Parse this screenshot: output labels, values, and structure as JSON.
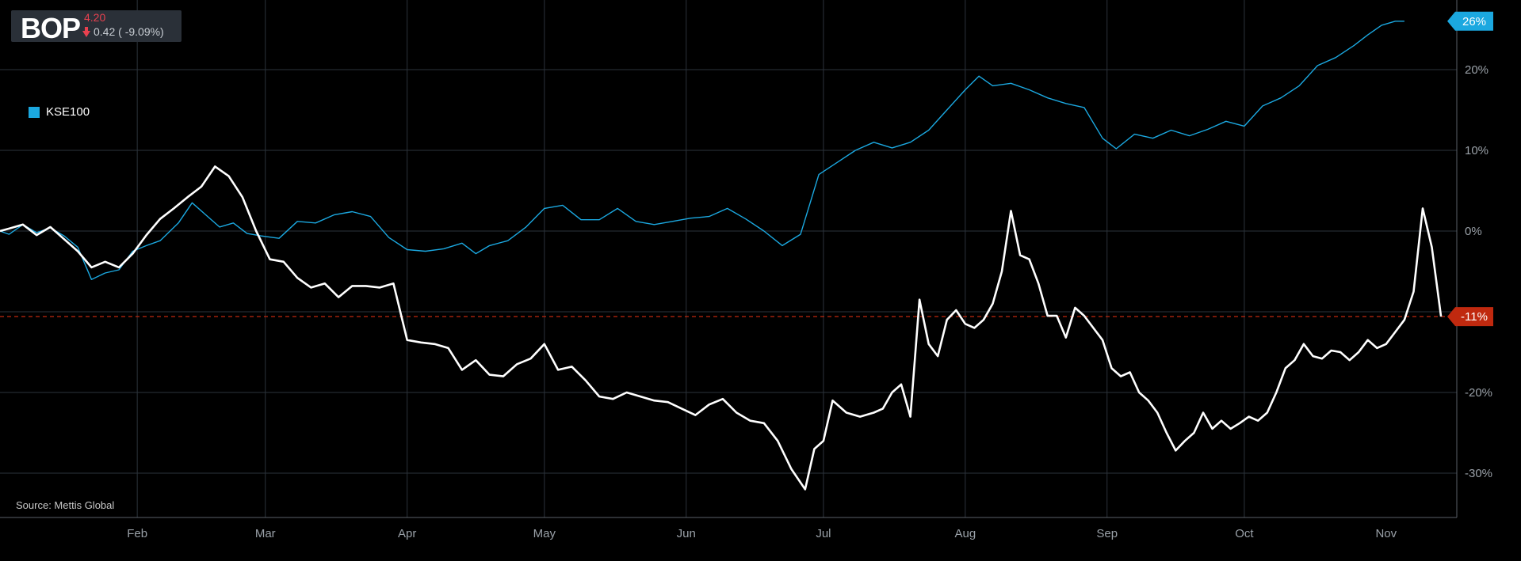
{
  "header": {
    "symbol": "BOP",
    "price": "4.20",
    "change": "0.42 ( -9.09%)",
    "change_direction_icon": "arrow-down-icon",
    "change_color": "#e8414f"
  },
  "legend": {
    "label": "KSE100",
    "color": "#1ba8e0"
  },
  "source": "Source: Mettis Global",
  "badges": {
    "kse100_last": "26%",
    "bop_last": "-11%",
    "kse100_color": "#1ba8e0",
    "bop_color": "#c0290f"
  },
  "chart_data": {
    "type": "line",
    "ylabel": "",
    "xlabel": "",
    "y_unit": "%",
    "ylim": [
      -35,
      27
    ],
    "yticks": [
      20,
      10,
      0,
      -10,
      -20,
      -30
    ],
    "ytick_labels": [
      "20%",
      "10%",
      "0%",
      "-10%",
      "-20%",
      "-30%"
    ],
    "x_tick_labels": [
      {
        "day": 31,
        "label": "Feb"
      },
      {
        "day": 59,
        "label": "Mar"
      },
      {
        "day": 90,
        "label": "Apr"
      },
      {
        "day": 120,
        "label": "May"
      },
      {
        "day": 151,
        "label": "Jun"
      },
      {
        "day": 181,
        "label": "Jul"
      },
      {
        "day": 212,
        "label": "Aug"
      },
      {
        "day": 243,
        "label": "Sep"
      },
      {
        "day": 273,
        "label": "Oct"
      },
      {
        "day": 304,
        "label": "Nov"
      }
    ],
    "xlim_day": [
      1,
      311
    ],
    "grid": true,
    "reference_line": {
      "value": -10.6,
      "style": "dashed",
      "color": "#c0290f"
    },
    "series": [
      {
        "name": "KSE100",
        "color": "#1ba8e0",
        "points": [
          [
            1,
            0
          ],
          [
            3,
            -0.4
          ],
          [
            6,
            0.8
          ],
          [
            9,
            -0.2
          ],
          [
            12,
            0.4
          ],
          [
            15,
            -0.6
          ],
          [
            18,
            -2
          ],
          [
            21,
            -6
          ],
          [
            24,
            -5.2
          ],
          [
            27,
            -4.8
          ],
          [
            30,
            -2.5
          ],
          [
            33,
            -1.8
          ],
          [
            36,
            -1.2
          ],
          [
            40,
            1
          ],
          [
            43,
            3.5
          ],
          [
            46,
            2
          ],
          [
            49,
            0.5
          ],
          [
            52,
            1
          ],
          [
            55,
            -0.3
          ],
          [
            58,
            -0.6
          ],
          [
            62,
            -0.9
          ],
          [
            66,
            1.2
          ],
          [
            70,
            1
          ],
          [
            74,
            2
          ],
          [
            78,
            2.4
          ],
          [
            82,
            1.8
          ],
          [
            86,
            -0.8
          ],
          [
            90,
            -2.3
          ],
          [
            94,
            -2.5
          ],
          [
            98,
            -2.2
          ],
          [
            102,
            -1.5
          ],
          [
            105,
            -2.8
          ],
          [
            108,
            -1.8
          ],
          [
            112,
            -1.2
          ],
          [
            116,
            0.5
          ],
          [
            120,
            2.8
          ],
          [
            124,
            3.2
          ],
          [
            128,
            1.4
          ],
          [
            132,
            1.4
          ],
          [
            136,
            2.8
          ],
          [
            140,
            1.2
          ],
          [
            144,
            0.8
          ],
          [
            148,
            1.2
          ],
          [
            152,
            1.6
          ],
          [
            156,
            1.8
          ],
          [
            160,
            2.8
          ],
          [
            164,
            1.5
          ],
          [
            168,
            0
          ],
          [
            172,
            -1.8
          ],
          [
            176,
            -0.4
          ],
          [
            180,
            7
          ],
          [
            184,
            8.5
          ],
          [
            188,
            10
          ],
          [
            192,
            11
          ],
          [
            196,
            10.3
          ],
          [
            200,
            11
          ],
          [
            204,
            12.5
          ],
          [
            208,
            15
          ],
          [
            212,
            17.5
          ],
          [
            215,
            19.2
          ],
          [
            218,
            18
          ],
          [
            222,
            18.3
          ],
          [
            226,
            17.5
          ],
          [
            230,
            16.5
          ],
          [
            234,
            15.8
          ],
          [
            238,
            15.3
          ],
          [
            242,
            11.5
          ],
          [
            245,
            10.2
          ],
          [
            249,
            12
          ],
          [
            253,
            11.5
          ],
          [
            257,
            12.5
          ],
          [
            261,
            11.8
          ],
          [
            265,
            12.6
          ],
          [
            269,
            13.6
          ],
          [
            273,
            13
          ],
          [
            277,
            15.5
          ],
          [
            281,
            16.5
          ],
          [
            285,
            18
          ],
          [
            289,
            20.5
          ],
          [
            293,
            21.5
          ],
          [
            297,
            23
          ],
          [
            300,
            24.3
          ],
          [
            303,
            25.5
          ],
          [
            306,
            26
          ],
          [
            308,
            26
          ]
        ]
      },
      {
        "name": "BOP",
        "color": "#ffffff",
        "points": [
          [
            1,
            0
          ],
          [
            3,
            0.3
          ],
          [
            6,
            0.8
          ],
          [
            9,
            -0.5
          ],
          [
            12,
            0.5
          ],
          [
            15,
            -1
          ],
          [
            18,
            -2.5
          ],
          [
            21,
            -4.5
          ],
          [
            24,
            -3.8
          ],
          [
            27,
            -4.5
          ],
          [
            30,
            -2.8
          ],
          [
            33,
            -0.5
          ],
          [
            36,
            1.5
          ],
          [
            39,
            2.8
          ],
          [
            42,
            4.2
          ],
          [
            45,
            5.5
          ],
          [
            48,
            8
          ],
          [
            51,
            6.8
          ],
          [
            54,
            4.2
          ],
          [
            57,
            0
          ],
          [
            60,
            -3.5
          ],
          [
            63,
            -3.8
          ],
          [
            66,
            -5.8
          ],
          [
            69,
            -7
          ],
          [
            72,
            -6.5
          ],
          [
            75,
            -8.2
          ],
          [
            78,
            -6.8
          ],
          [
            81,
            -6.8
          ],
          [
            84,
            -7
          ],
          [
            87,
            -6.5
          ],
          [
            90,
            -13.5
          ],
          [
            93,
            -13.8
          ],
          [
            96,
            -14
          ],
          [
            99,
            -14.5
          ],
          [
            102,
            -17.2
          ],
          [
            105,
            -16
          ],
          [
            108,
            -17.8
          ],
          [
            111,
            -18
          ],
          [
            114,
            -16.5
          ],
          [
            117,
            -15.8
          ],
          [
            120,
            -14
          ],
          [
            123,
            -17.2
          ],
          [
            126,
            -16.8
          ],
          [
            129,
            -18.5
          ],
          [
            132,
            -20.5
          ],
          [
            135,
            -20.8
          ],
          [
            138,
            -20
          ],
          [
            141,
            -20.5
          ],
          [
            144,
            -21
          ],
          [
            147,
            -21.2
          ],
          [
            150,
            -22
          ],
          [
            153,
            -22.8
          ],
          [
            156,
            -21.5
          ],
          [
            159,
            -20.8
          ],
          [
            162,
            -22.5
          ],
          [
            165,
            -23.5
          ],
          [
            168,
            -23.8
          ],
          [
            171,
            -26
          ],
          [
            174,
            -29.5
          ],
          [
            177,
            -32
          ],
          [
            179,
            -27
          ],
          [
            181,
            -26
          ],
          [
            183,
            -21
          ],
          [
            186,
            -22.5
          ],
          [
            189,
            -23
          ],
          [
            192,
            -22.5
          ],
          [
            194,
            -22
          ],
          [
            196,
            -20
          ],
          [
            198,
            -19
          ],
          [
            200,
            -23
          ],
          [
            202,
            -8.5
          ],
          [
            204,
            -14
          ],
          [
            206,
            -15.5
          ],
          [
            208,
            -11
          ],
          [
            210,
            -9.8
          ],
          [
            212,
            -11.5
          ],
          [
            214,
            -12
          ],
          [
            216,
            -11
          ],
          [
            218,
            -9
          ],
          [
            220,
            -5
          ],
          [
            222,
            2.5
          ],
          [
            224,
            -3
          ],
          [
            226,
            -3.5
          ],
          [
            228,
            -6.5
          ],
          [
            230,
            -10.5
          ],
          [
            232,
            -10.5
          ],
          [
            234,
            -13.2
          ],
          [
            236,
            -9.5
          ],
          [
            238,
            -10.5
          ],
          [
            240,
            -12
          ],
          [
            242,
            -13.5
          ],
          [
            244,
            -17
          ],
          [
            246,
            -18
          ],
          [
            248,
            -17.5
          ],
          [
            250,
            -20
          ],
          [
            252,
            -21
          ],
          [
            254,
            -22.5
          ],
          [
            256,
            -25
          ],
          [
            258,
            -27.2
          ],
          [
            260,
            -26
          ],
          [
            262,
            -25
          ],
          [
            264,
            -22.5
          ],
          [
            266,
            -24.5
          ],
          [
            268,
            -23.5
          ],
          [
            270,
            -24.5
          ],
          [
            272,
            -23.8
          ],
          [
            274,
            -23
          ],
          [
            276,
            -23.5
          ],
          [
            278,
            -22.5
          ],
          [
            280,
            -20
          ],
          [
            282,
            -17
          ],
          [
            284,
            -16
          ],
          [
            286,
            -14
          ],
          [
            288,
            -15.5
          ],
          [
            290,
            -15.8
          ],
          [
            292,
            -14.8
          ],
          [
            294,
            -15
          ],
          [
            296,
            -16
          ],
          [
            298,
            -15
          ],
          [
            300,
            -13.5
          ],
          [
            302,
            -14.5
          ],
          [
            304,
            -14
          ],
          [
            306,
            -12.5
          ],
          [
            308,
            -11
          ],
          [
            310,
            -7.5
          ],
          [
            312,
            2.8
          ],
          [
            314,
            -2
          ],
          [
            316,
            -10.6
          ]
        ]
      }
    ]
  }
}
